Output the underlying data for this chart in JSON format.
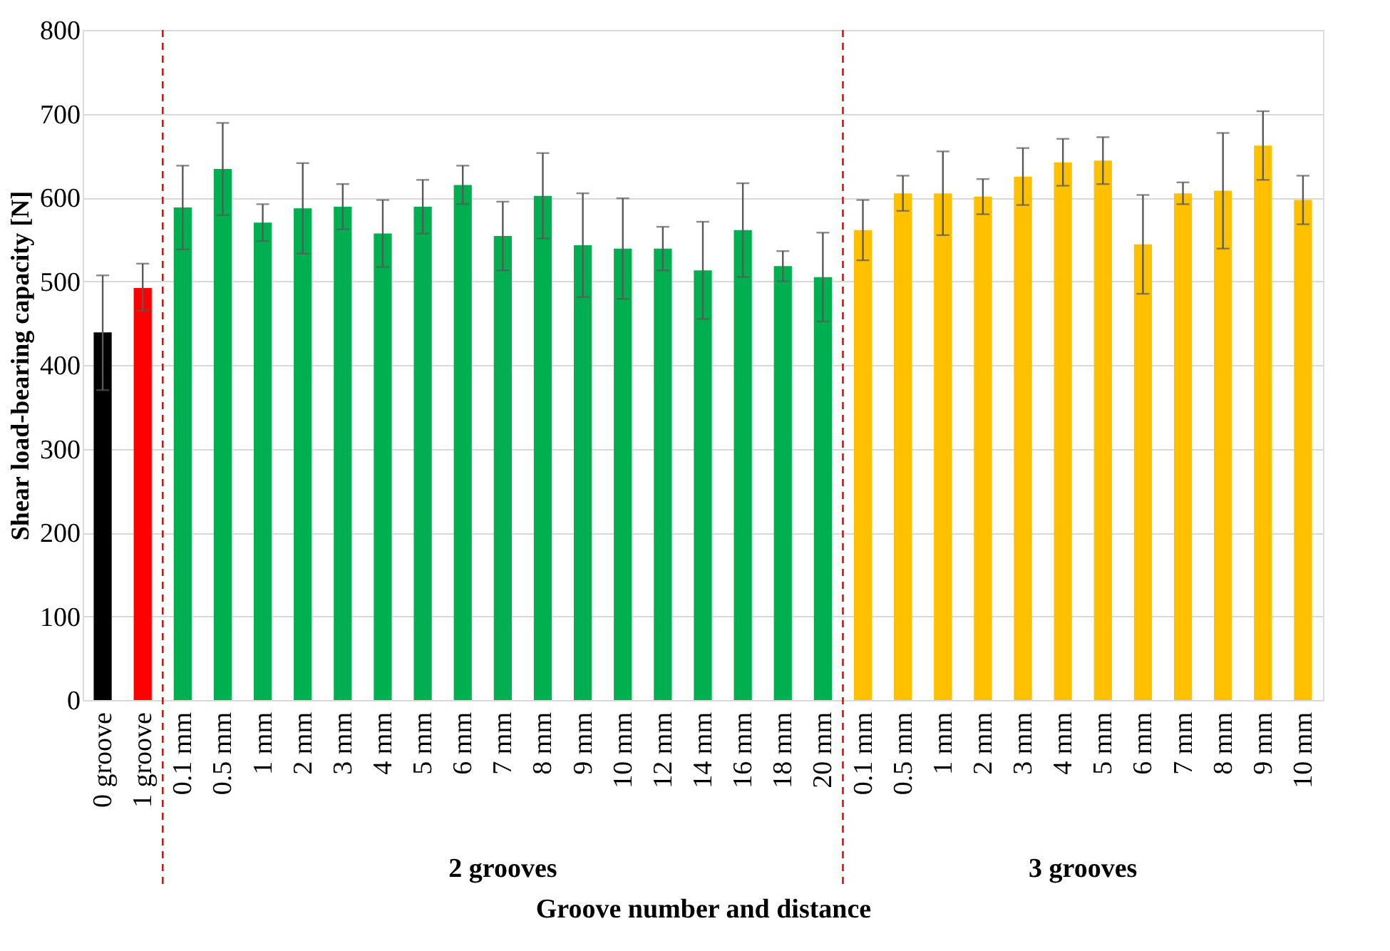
{
  "chart_data": {
    "type": "bar",
    "xlabel": "Groove number and distance",
    "ylabel": "Shear load-bearing capacity [N]",
    "categories": [
      "0 groove",
      "1 groove",
      "0.1 mm",
      "0.5 mm",
      "1 mm",
      "2 mm",
      "3 mm",
      "4 mm",
      "5 mm",
      "6 mm",
      "7 mm",
      "8 mm",
      "9 mm",
      "10 mm",
      "12 mm",
      "14 mm",
      "16 mm",
      "18 mm",
      "20 mm",
      "0.1 mm",
      "0.5 mm",
      "1 mm",
      "2 mm",
      "3 mm",
      "4 mm",
      "5 mm",
      "6 mm",
      "7 mm",
      "8 mm",
      "9 mm",
      "10 mm"
    ],
    "values": [
      439,
      492,
      588,
      634,
      570,
      587,
      589,
      557,
      589,
      615,
      554,
      602,
      543,
      539,
      539,
      513,
      561,
      518,
      505,
      561,
      605,
      605,
      601,
      625,
      642,
      644,
      544,
      605,
      608,
      662,
      597
    ],
    "errors": [
      [
        370,
        507
      ],
      [
        465,
        521
      ],
      50,
      55,
      22,
      54,
      27,
      40,
      32,
      23,
      41,
      51,
      62,
      60,
      26,
      58,
      56,
      18,
      53,
      36,
      21,
      50,
      21,
      34,
      28,
      28,
      59,
      13,
      69,
      41,
      29
    ],
    "colors": [
      "#000000",
      "#ff0000",
      "#00b050",
      "#00b050",
      "#00b050",
      "#00b050",
      "#00b050",
      "#00b050",
      "#00b050",
      "#00b050",
      "#00b050",
      "#00b050",
      "#00b050",
      "#00b050",
      "#00b050",
      "#00b050",
      "#00b050",
      "#00b050",
      "#00b050",
      "#ffc000",
      "#ffc000",
      "#ffc000",
      "#ffc000",
      "#ffc000",
      "#ffc000",
      "#ffc000",
      "#ffc000",
      "#ffc000",
      "#ffc000",
      "#ffc000",
      "#ffc000"
    ],
    "ylim": [
      0,
      800
    ],
    "yticks": [
      0,
      100,
      200,
      300,
      400,
      500,
      600,
      700,
      800
    ],
    "grid": "y",
    "annotations": [
      "2 grooves",
      "3 grooves"
    ]
  }
}
